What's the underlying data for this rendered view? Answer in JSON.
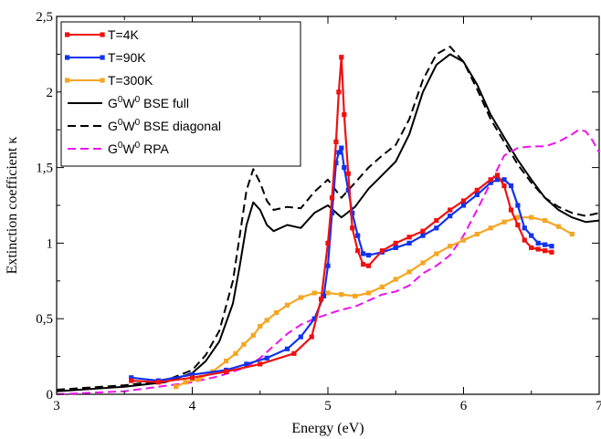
{
  "chart_data": {
    "type": "line",
    "xlabel": "Energy (eV)",
    "ylabel": "Extinction coefficient κ",
    "xlim": [
      3,
      7
    ],
    "ylim": [
      0,
      2.5
    ],
    "x_ticks": [
      3,
      4,
      5,
      6,
      7
    ],
    "x_tick_labels": [
      "3",
      "4",
      "5",
      "6",
      "7"
    ],
    "y_ticks": [
      0,
      0.5,
      1,
      1.5,
      2,
      2.5
    ],
    "y_tick_labels": [
      "0",
      "0,5",
      "1",
      "1,5",
      "2",
      "2,5"
    ],
    "grid": false,
    "legend_position": "top-left",
    "series": [
      {
        "name": "T=4K",
        "color": "#ee1111",
        "style": "solid-markers",
        "x": [
          3.55,
          3.75,
          4.0,
          4.25,
          4.5,
          4.75,
          4.88,
          4.95,
          5.0,
          5.03,
          5.06,
          5.08,
          5.1,
          5.12,
          5.15,
          5.18,
          5.22,
          5.26,
          5.3,
          5.4,
          5.5,
          5.6,
          5.7,
          5.8,
          5.9,
          6.0,
          6.1,
          6.2,
          6.25,
          6.3,
          6.35,
          6.4,
          6.45,
          6.5,
          6.55,
          6.6,
          6.65
        ],
        "y": [
          0.09,
          0.08,
          0.11,
          0.15,
          0.2,
          0.27,
          0.38,
          0.63,
          1.0,
          1.3,
          1.67,
          2.0,
          2.23,
          1.85,
          1.46,
          1.1,
          0.95,
          0.86,
          0.85,
          0.95,
          1.0,
          1.04,
          1.08,
          1.15,
          1.22,
          1.28,
          1.35,
          1.42,
          1.45,
          1.38,
          1.22,
          1.12,
          1.02,
          0.97,
          0.96,
          0.95,
          0.94
        ]
      },
      {
        "name": "T=90K",
        "color": "#1133ee",
        "style": "solid-markers",
        "x": [
          3.55,
          3.75,
          4.0,
          4.25,
          4.4,
          4.55,
          4.7,
          4.8,
          4.9,
          4.97,
          5.0,
          5.03,
          5.06,
          5.08,
          5.1,
          5.12,
          5.15,
          5.18,
          5.22,
          5.26,
          5.3,
          5.4,
          5.5,
          5.6,
          5.7,
          5.8,
          5.9,
          6.0,
          6.1,
          6.2,
          6.25,
          6.3,
          6.35,
          6.4,
          6.45,
          6.5,
          6.55,
          6.6,
          6.65
        ],
        "y": [
          0.11,
          0.09,
          0.13,
          0.16,
          0.2,
          0.24,
          0.3,
          0.38,
          0.5,
          0.65,
          0.85,
          1.2,
          1.53,
          1.6,
          1.63,
          1.5,
          1.35,
          1.2,
          1.05,
          0.93,
          0.92,
          0.94,
          0.97,
          1.0,
          1.05,
          1.1,
          1.18,
          1.25,
          1.32,
          1.4,
          1.42,
          1.42,
          1.38,
          1.25,
          1.1,
          1.05,
          1.0,
          0.99,
          0.98
        ]
      },
      {
        "name": "T=300K",
        "color": "#f5a623",
        "style": "solid-markers",
        "x": [
          3.88,
          3.95,
          4.05,
          4.15,
          4.25,
          4.32,
          4.38,
          4.45,
          4.5,
          4.55,
          4.62,
          4.7,
          4.8,
          4.9,
          5.0,
          5.1,
          5.2,
          5.3,
          5.4,
          5.5,
          5.6,
          5.7,
          5.8,
          5.9,
          6.0,
          6.1,
          6.2,
          6.3,
          6.4,
          6.5,
          6.6,
          6.7,
          6.8
        ],
        "y": [
          0.05,
          0.08,
          0.1,
          0.15,
          0.22,
          0.27,
          0.33,
          0.39,
          0.45,
          0.49,
          0.54,
          0.59,
          0.64,
          0.67,
          0.67,
          0.66,
          0.65,
          0.67,
          0.71,
          0.76,
          0.81,
          0.87,
          0.93,
          0.98,
          1.02,
          1.06,
          1.1,
          1.14,
          1.17,
          1.17,
          1.15,
          1.11,
          1.06
        ]
      },
      {
        "name": "G0W0 BSE full",
        "color": "#000000",
        "style": "solid",
        "x": [
          3.0,
          3.5,
          3.8,
          4.0,
          4.1,
          4.2,
          4.3,
          4.35,
          4.4,
          4.45,
          4.5,
          4.55,
          4.6,
          4.7,
          4.8,
          4.9,
          5.0,
          5.1,
          5.2,
          5.3,
          5.4,
          5.5,
          5.6,
          5.7,
          5.8,
          5.9,
          6.0,
          6.1,
          6.2,
          6.3,
          6.4,
          6.5,
          6.6,
          6.7,
          6.8,
          6.9,
          7.0
        ],
        "y": [
          0.02,
          0.05,
          0.08,
          0.14,
          0.22,
          0.35,
          0.6,
          0.85,
          1.12,
          1.27,
          1.22,
          1.12,
          1.08,
          1.12,
          1.1,
          1.2,
          1.25,
          1.17,
          1.24,
          1.36,
          1.45,
          1.54,
          1.72,
          2.0,
          2.18,
          2.25,
          2.2,
          2.05,
          1.85,
          1.7,
          1.55,
          1.42,
          1.3,
          1.22,
          1.17,
          1.14,
          1.15
        ]
      },
      {
        "name": "G0W0 BSE diagonal",
        "color": "#000000",
        "style": "dashed",
        "x": [
          3.0,
          3.5,
          3.8,
          4.0,
          4.1,
          4.2,
          4.3,
          4.35,
          4.4,
          4.45,
          4.5,
          4.55,
          4.6,
          4.7,
          4.8,
          4.9,
          5.0,
          5.1,
          5.2,
          5.3,
          5.4,
          5.5,
          5.6,
          5.7,
          5.8,
          5.9,
          6.0,
          6.1,
          6.2,
          6.3,
          6.4,
          6.5,
          6.6,
          6.7,
          6.8,
          6.9,
          7.0
        ],
        "y": [
          0.03,
          0.06,
          0.09,
          0.16,
          0.26,
          0.42,
          0.75,
          1.05,
          1.35,
          1.49,
          1.4,
          1.28,
          1.22,
          1.24,
          1.23,
          1.34,
          1.42,
          1.3,
          1.4,
          1.5,
          1.58,
          1.65,
          1.82,
          2.08,
          2.25,
          2.3,
          2.2,
          2.02,
          1.82,
          1.67,
          1.52,
          1.4,
          1.3,
          1.24,
          1.2,
          1.18,
          1.2
        ]
      },
      {
        "name": "G0W0 RPA",
        "color": "#ee11ee",
        "style": "dashed",
        "x": [
          3.0,
          3.5,
          4.0,
          4.2,
          4.4,
          4.5,
          4.6,
          4.7,
          4.8,
          4.9,
          5.0,
          5.1,
          5.2,
          5.3,
          5.4,
          5.5,
          5.6,
          5.7,
          5.8,
          5.9,
          6.0,
          6.1,
          6.2,
          6.3,
          6.4,
          6.5,
          6.6,
          6.7,
          6.8,
          6.85,
          6.9,
          6.95,
          7.0
        ],
        "y": [
          0.0,
          0.02,
          0.08,
          0.12,
          0.18,
          0.24,
          0.32,
          0.4,
          0.46,
          0.5,
          0.53,
          0.56,
          0.58,
          0.62,
          0.66,
          0.68,
          0.72,
          0.8,
          0.85,
          0.92,
          1.05,
          1.22,
          1.4,
          1.58,
          1.63,
          1.64,
          1.64,
          1.67,
          1.72,
          1.75,
          1.74,
          1.68,
          1.6
        ]
      }
    ]
  },
  "legend": {
    "items": [
      {
        "label": "T=4K",
        "sup": "",
        "label2": "",
        "sup2": "",
        "label3": ""
      },
      {
        "label": "T=90K",
        "sup": "",
        "label2": "",
        "sup2": "",
        "label3": ""
      },
      {
        "label": "T=300K",
        "sup": "",
        "label2": "",
        "sup2": "",
        "label3": ""
      },
      {
        "label": "G",
        "sup": "0",
        "label2": "W",
        "sup2": "0",
        "label3": " BSE full"
      },
      {
        "label": "G",
        "sup": "0",
        "label2": "W",
        "sup2": "0",
        "label3": " BSE  diagonal"
      },
      {
        "label": "G",
        "sup": "0",
        "label2": "W",
        "sup2": "0",
        "label3": " RPA"
      }
    ]
  }
}
